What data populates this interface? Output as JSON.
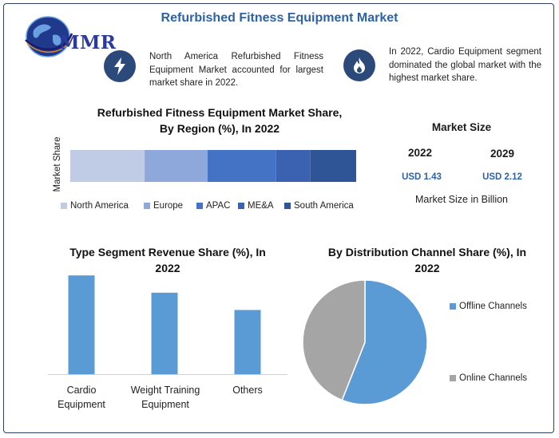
{
  "header": {
    "title": "Refurbished Fitness Equipment Market"
  },
  "logo": {
    "text": "MMR",
    "icon": "globe-icon"
  },
  "callouts": [
    {
      "icon": "lightning-icon",
      "text": "North America Refurbished Fitness Equipment Market accounted for largest market share in 2022."
    },
    {
      "icon": "flame-icon",
      "text": "In 2022, Cardio Equipment segment dominated the global market with the highest market share."
    }
  ],
  "colors": {
    "accent": "#2e62a8",
    "icon_bg": "#2b4a79",
    "bar_blue": "#5b9bd5",
    "pie_gray": "#a5a5a5"
  },
  "market_size": {
    "title": "Market Size",
    "years": [
      "2022",
      "2029"
    ],
    "values": [
      "USD 1.43",
      "USD 2.12"
    ],
    "unit_label": "Market Size in Billion"
  },
  "chart_data": [
    {
      "type": "bar",
      "orientation": "horizontal-stacked",
      "title": "Refurbished Fitness Equipment Market Share, By Region (%), In 2022",
      "ylabel": "Market Share",
      "categories": [
        ""
      ],
      "series": [
        {
          "name": "North America",
          "values": [
            26
          ],
          "color": "#c0cbe6"
        },
        {
          "name": "Europe",
          "values": [
            22
          ],
          "color": "#8ea8db"
        },
        {
          "name": "APAC",
          "values": [
            24
          ],
          "color": "#4472c4"
        },
        {
          "name": "ME&A",
          "values": [
            12
          ],
          "color": "#3a62b0"
        },
        {
          "name": "South America",
          "values": [
            16
          ],
          "color": "#2f5597"
        }
      ],
      "legend": "bottom"
    },
    {
      "type": "bar",
      "title": "Type Segment Revenue Share (%), In 2022",
      "categories": [
        "Cardio Equipment",
        "Weight Training Equipment",
        "Others"
      ],
      "values": [
        40,
        33,
        26
      ],
      "ylim": [
        0,
        42
      ],
      "color": "#5b9bd5"
    },
    {
      "type": "pie",
      "title": "By Distribution Channel Share (%), In 2022",
      "categories": [
        "Offline Channels",
        "Online Channels"
      ],
      "values": [
        56,
        44
      ],
      "colors": [
        "#5b9bd5",
        "#a5a5a5"
      ],
      "legend": "right"
    }
  ]
}
